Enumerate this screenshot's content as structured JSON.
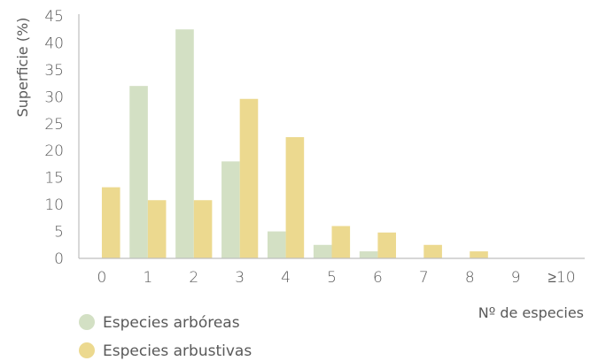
{
  "chart_data": {
    "type": "bar",
    "categories": [
      "0",
      "1",
      "2",
      "3",
      "4",
      "5",
      "6",
      "7",
      "8",
      "9",
      "≥10"
    ],
    "series": [
      {
        "name": "Especies arbóreas",
        "color": "#d3e0c4",
        "values": [
          0,
          32,
          42.5,
          18,
          5,
          2.5,
          1.3,
          0,
          0,
          0,
          0
        ]
      },
      {
        "name": "Especies arbustivas",
        "color": "#ecd98f",
        "values": [
          13.2,
          10.8,
          10.8,
          29.6,
          22.5,
          6,
          4.8,
          2.5,
          1.3,
          0,
          0
        ]
      }
    ],
    "xlabel": "Nº de especies",
    "ylabel": "Superficie (%)",
    "ylim": [
      0,
      45
    ],
    "yticks": [
      0,
      5,
      10,
      15,
      20,
      25,
      30,
      35,
      40,
      45
    ],
    "grid": false,
    "legend_position": "bottom-left",
    "axis_color": "#bfbfbf",
    "text_color": "#595959"
  }
}
